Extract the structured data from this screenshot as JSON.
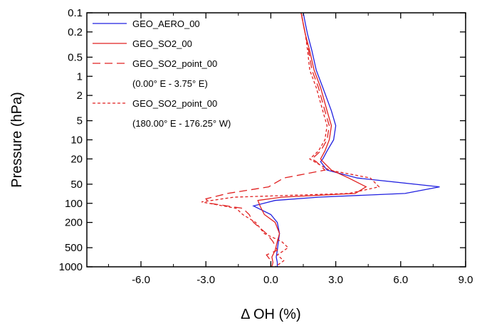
{
  "chart_data": {
    "type": "line",
    "xlabel": "Δ OH (%)",
    "ylabel": "Pressure (hPa)",
    "xlim": [
      -8.5,
      9.0
    ],
    "ylim": [
      1000,
      0.1
    ],
    "y_scale": "log",
    "y_reversed": true,
    "grid": false,
    "legend_position": "top-left",
    "x_ticks": [
      -6.0,
      -3.0,
      0.0,
      3.0,
      6.0,
      9.0
    ],
    "x_tick_labels": [
      "-6.0",
      "-3.0",
      "0.0",
      "3.0",
      "6.0",
      "9.0"
    ],
    "y_ticks": [
      0.1,
      0.2,
      0.5,
      1,
      2,
      5,
      10,
      20,
      50,
      100,
      200,
      500,
      1000
    ],
    "y_tick_labels": [
      "0.1",
      "0.2",
      "0.5",
      "1",
      "2",
      "5",
      "10",
      "20",
      "50",
      "100",
      "200",
      "500",
      "1000"
    ],
    "series": [
      {
        "name": "GEO_AERO_00",
        "color": "#2020e0",
        "dash": "solid",
        "legend_lines": [
          "GEO_AERO_00"
        ],
        "x": [
          1.5,
          1.6,
          1.7,
          1.9,
          2.1,
          2.4,
          2.8,
          3.0,
          2.9,
          2.6,
          2.4,
          2.3,
          2.6,
          4.0,
          7.8,
          6.2,
          2.2,
          0.2,
          -0.8,
          0.0,
          0.3,
          0.4,
          0.35,
          0.3,
          0.25,
          0.3,
          0.3
        ],
        "y": [
          0.1,
          0.15,
          0.22,
          0.4,
          0.8,
          1.5,
          3.5,
          6,
          10,
          15,
          20,
          22,
          30,
          40,
          55,
          70,
          80,
          90,
          110,
          150,
          200,
          300,
          400,
          550,
          700,
          850,
          1000
        ]
      },
      {
        "name": "GEO_SO2_00",
        "color": "#e02020",
        "dash": "solid",
        "legend_lines": [
          "GEO_SO2_00"
        ],
        "x": [
          1.4,
          1.5,
          1.6,
          1.8,
          2.0,
          2.3,
          2.6,
          2.8,
          2.7,
          2.5,
          2.3,
          2.4,
          2.8,
          3.6,
          4.4,
          3.9,
          0.5,
          -0.6,
          -0.5,
          -0.3,
          0.2,
          0.4,
          0.3,
          0.2,
          0.05,
          0.1,
          0.05
        ],
        "y": [
          0.1,
          0.15,
          0.22,
          0.4,
          0.8,
          1.5,
          3.5,
          6,
          10,
          15,
          20,
          22,
          30,
          40,
          55,
          70,
          80,
          90,
          110,
          150,
          200,
          300,
          400,
          550,
          700,
          850,
          1000
        ]
      },
      {
        "name": "GEO_SO2_point_00",
        "color": "#e02020",
        "dash": "long-dash",
        "legend_lines": [
          "GEO_SO2_point_00",
          "(0.00° E - 3.75° E)"
        ],
        "x": [
          1.4,
          1.5,
          1.6,
          1.75,
          1.9,
          2.2,
          2.5,
          2.7,
          2.6,
          2.3,
          1.9,
          2.1,
          2.5,
          0.6,
          -0.1,
          -2.0,
          -3.0,
          -2.8,
          -1.3,
          -1.0,
          -0.8,
          -0.2,
          0.1,
          0.3,
          -0.2,
          0.0,
          0.0
        ],
        "y": [
          0.1,
          0.15,
          0.22,
          0.4,
          0.8,
          1.5,
          3.5,
          6,
          10,
          15,
          20,
          22,
          30,
          40,
          55,
          70,
          85,
          100,
          120,
          150,
          200,
          300,
          400,
          550,
          650,
          800,
          1000
        ]
      },
      {
        "name": "GEO_SO2_point_00",
        "color": "#e02020",
        "dash": "dot",
        "legend_lines": [
          "GEO_SO2_point_00",
          "(180.00° E - 176.25° W)"
        ],
        "x": [
          1.4,
          1.5,
          1.6,
          1.7,
          1.8,
          2.1,
          2.4,
          2.6,
          2.5,
          2.2,
          1.8,
          2.0,
          2.7,
          4.6,
          5.0,
          3.6,
          -1.7,
          -3.2,
          -1.6,
          -1.3,
          -0.7,
          -0.3,
          0.5,
          0.8,
          0.3,
          0.6,
          0.2
        ],
        "y": [
          0.1,
          0.15,
          0.22,
          0.4,
          0.8,
          1.5,
          3.5,
          6,
          10,
          15,
          20,
          22,
          30,
          40,
          55,
          70,
          80,
          95,
          120,
          150,
          200,
          300,
          400,
          500,
          650,
          800,
          1000
        ]
      }
    ]
  }
}
